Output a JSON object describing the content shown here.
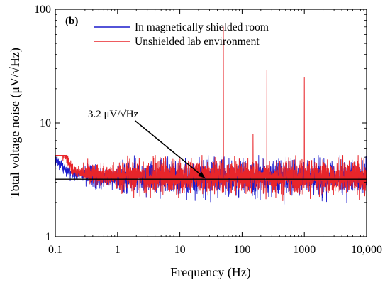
{
  "chart_data": {
    "type": "line",
    "panel_label": "(b)",
    "xlabel": "Frequency (Hz)",
    "ylabel": "Total voltage noise (μV/√Hz)",
    "x_scale": "log",
    "y_scale": "log",
    "xlim": [
      0.1,
      10000
    ],
    "ylim": [
      1,
      100
    ],
    "x_ticks": [
      0.1,
      1,
      10,
      100,
      1000,
      10000
    ],
    "x_tick_labels": [
      "0.1",
      "1",
      "10",
      "100",
      "1000",
      "10,000"
    ],
    "y_ticks": [
      1,
      10,
      100
    ],
    "y_tick_labels": [
      "1",
      "10",
      "100"
    ],
    "grid": false,
    "legend_position": "top-center",
    "series": [
      {
        "name": "In magnetically shielded room",
        "color": "#1a1acc",
        "baseline": 3.3,
        "points": [
          [
            0.1,
            4.8
          ],
          [
            0.12,
            4.3
          ],
          [
            0.15,
            3.8
          ],
          [
            0.2,
            3.6
          ],
          [
            0.3,
            3.5
          ],
          [
            0.5,
            3.3
          ],
          [
            1,
            3.3
          ],
          [
            10,
            3.3
          ],
          [
            100,
            3.3
          ],
          [
            1000,
            3.3
          ],
          [
            10000,
            3.3
          ]
        ]
      },
      {
        "name": "Unshielded lab environment",
        "color": "#e8252a",
        "baseline": 3.35,
        "points": [
          [
            0.1,
            6.0
          ],
          [
            0.12,
            5.9
          ],
          [
            0.15,
            5.0
          ],
          [
            0.18,
            4.0
          ],
          [
            0.25,
            3.7
          ],
          [
            0.4,
            3.5
          ],
          [
            1,
            3.4
          ],
          [
            10,
            3.35
          ],
          [
            100,
            3.35
          ],
          [
            1000,
            3.35
          ],
          [
            10000,
            3.35
          ]
        ],
        "peaks": [
          [
            50,
            70
          ],
          [
            150,
            8
          ],
          [
            250,
            29
          ],
          [
            1000,
            25
          ]
        ]
      }
    ],
    "reference_line": {
      "y": 3.2,
      "label": "3.2 μV/√Hz"
    },
    "annotation": {
      "text": "3.2 μV/√Hz",
      "arrow_from": [
        1.9,
        10.5
      ],
      "arrow_to": [
        25,
        3.2
      ]
    }
  }
}
